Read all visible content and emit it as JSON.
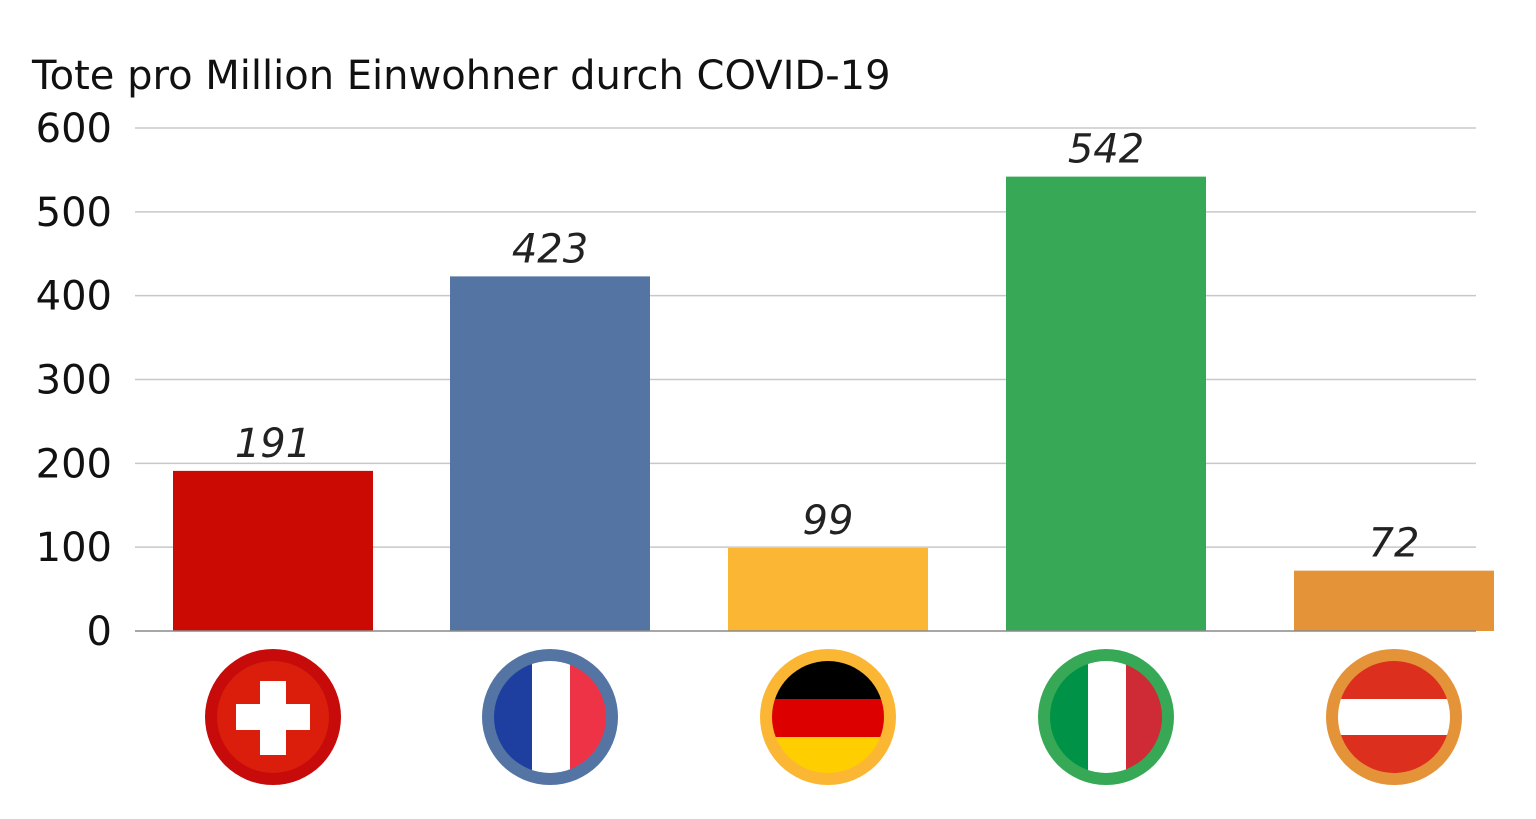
{
  "chart_data": {
    "type": "bar",
    "title": "Tote pro Million Einwohner durch COVID-19",
    "xlabel": "",
    "ylabel": "",
    "ylim": [
      0,
      600
    ],
    "yticks": [
      0,
      100,
      200,
      300,
      400,
      500,
      600
    ],
    "ytick_labels": [
      "0",
      "100",
      "200",
      "300",
      "400",
      "500",
      "600"
    ],
    "grid": true,
    "categories": [
      "switzerland-flag",
      "france-flag",
      "germany-flag",
      "italy-flag",
      "austria-flag"
    ],
    "values": [
      191,
      423,
      99,
      542,
      72
    ],
    "value_labels": [
      "191",
      "423",
      "99",
      "542",
      "72"
    ],
    "bar_colors": [
      "#cc0a04",
      "#5474a3",
      "#fbb734",
      "#37a956",
      "#e49339"
    ]
  }
}
